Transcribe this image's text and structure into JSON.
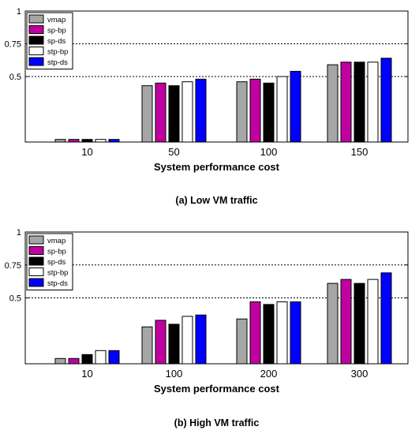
{
  "series_colors": {
    "vmap": "#a6a6a6",
    "sp-bp": "#c000a0",
    "sp-ds": "#000000",
    "stp-bp": "#ffffff",
    "stp-ds": "#0000ff"
  },
  "chart_data": [
    {
      "type": "bar",
      "caption": "(a) Low VM traffic",
      "xlabel": "System performance cost",
      "ylabel": "",
      "ylim": [
        0,
        1
      ],
      "yticks": [
        "0.5",
        "0.75",
        "1"
      ],
      "grid": "dotted at 0.5 and 0.75",
      "legend_position": "top-left",
      "categories": [
        "10",
        "50",
        "100",
        "150"
      ],
      "series": [
        {
          "name": "vmap",
          "values": [
            0.02,
            0.43,
            0.46,
            0.59
          ]
        },
        {
          "name": "sp-bp",
          "values": [
            0.02,
            0.45,
            0.48,
            0.61
          ]
        },
        {
          "name": "sp-ds",
          "values": [
            0.02,
            0.43,
            0.45,
            0.61
          ]
        },
        {
          "name": "stp-bp",
          "values": [
            0.02,
            0.46,
            0.5,
            0.61
          ]
        },
        {
          "name": "stp-ds",
          "values": [
            0.02,
            0.48,
            0.54,
            0.64
          ]
        }
      ]
    },
    {
      "type": "bar",
      "caption": "(b) High VM traffic",
      "xlabel": "System performance cost",
      "ylabel": "",
      "ylim": [
        0,
        1
      ],
      "yticks": [
        "0.5",
        "0.75",
        "1"
      ],
      "grid": "dotted at 0.5 and 0.75",
      "legend_position": "top-left",
      "categories": [
        "10",
        "100",
        "200",
        "300"
      ],
      "series": [
        {
          "name": "vmap",
          "values": [
            0.04,
            0.28,
            0.34,
            0.61
          ]
        },
        {
          "name": "sp-bp",
          "values": [
            0.04,
            0.33,
            0.47,
            0.64
          ]
        },
        {
          "name": "sp-ds",
          "values": [
            0.07,
            0.3,
            0.45,
            0.61
          ]
        },
        {
          "name": "stp-bp",
          "values": [
            0.1,
            0.36,
            0.47,
            0.64
          ]
        },
        {
          "name": "stp-ds",
          "values": [
            0.1,
            0.37,
            0.47,
            0.69
          ]
        }
      ]
    }
  ]
}
